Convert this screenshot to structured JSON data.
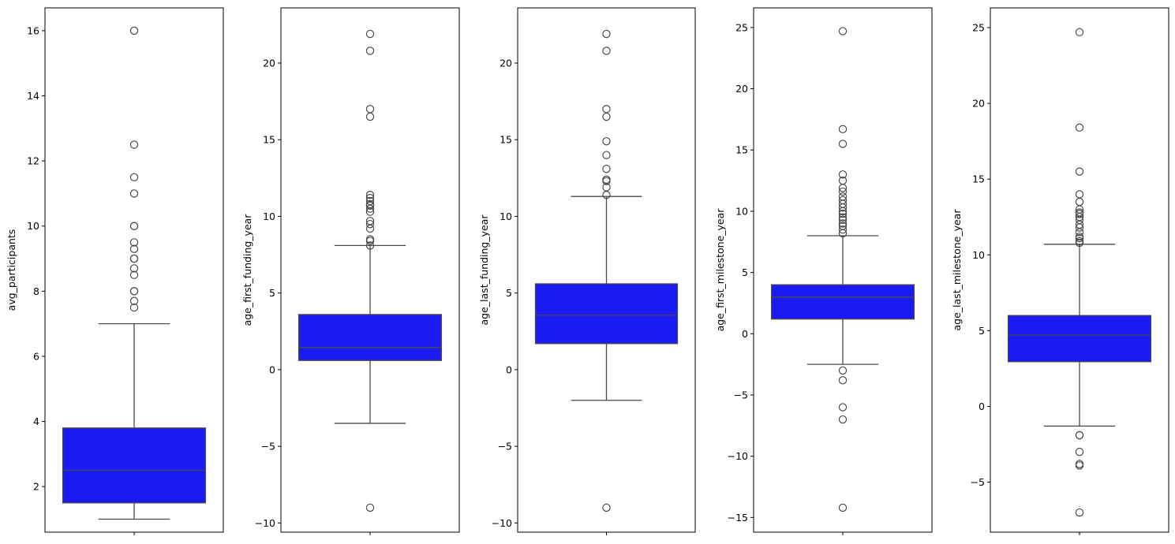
{
  "figure": {
    "colors": {
      "box_fill": "#1a1af2",
      "line": "#4a4a4a",
      "axis": "#000000",
      "background": "#ffffff"
    }
  },
  "chart_data": [
    {
      "type": "box",
      "title": "",
      "xlabel": "",
      "ylabel": "avg_participants",
      "ylim": [
        0.6,
        16.7
      ],
      "yticks": [
        2,
        4,
        6,
        8,
        10,
        12,
        14,
        16
      ],
      "ytick_labels": [
        "2",
        "4",
        "6",
        "8",
        "10",
        "12",
        "14",
        "16"
      ],
      "box": {
        "whisker_low": 1.0,
        "q1": 1.5,
        "median": 2.5,
        "q3": 3.8,
        "whisker_high": 7.0
      },
      "outliers": [
        7.5,
        7.7,
        8.0,
        8.0,
        8.5,
        8.7,
        9.0,
        9.0,
        9.3,
        9.5,
        10.0,
        10.0,
        11.0,
        11.5,
        12.5,
        16.0
      ],
      "grid": false,
      "legend": "none"
    },
    {
      "type": "box",
      "title": "",
      "xlabel": "",
      "ylabel": "age_first_funding_year",
      "ylim": [
        -10.6,
        23.6
      ],
      "yticks": [
        -10,
        -5,
        0,
        5,
        10,
        15,
        20
      ],
      "ytick_labels": [
        "−10",
        "−5",
        "0",
        "5",
        "10",
        "15",
        "20"
      ],
      "box": {
        "whisker_low": -3.5,
        "q1": 0.6,
        "median": 1.45,
        "q3": 3.6,
        "whisker_high": 8.1
      },
      "outliers": [
        -9.0,
        8.1,
        8.4,
        8.5,
        9.2,
        9.5,
        9.7,
        10.3,
        10.5,
        10.7,
        10.8,
        11.0,
        11.2,
        11.4,
        16.5,
        17.0,
        20.8,
        21.9
      ],
      "grid": false,
      "legend": "none"
    },
    {
      "type": "box",
      "title": "",
      "xlabel": "",
      "ylabel": "age_last_funding_year",
      "ylim": [
        -10.6,
        23.6
      ],
      "yticks": [
        -10,
        -5,
        0,
        5,
        10,
        15,
        20
      ],
      "ytick_labels": [
        "−10",
        "−5",
        "0",
        "5",
        "10",
        "15",
        "20"
      ],
      "box": {
        "whisker_low": -2.0,
        "q1": 1.7,
        "median": 3.55,
        "q3": 5.6,
        "whisker_high": 11.3
      },
      "outliers": [
        -9.0,
        11.4,
        11.9,
        12.3,
        12.4,
        13.1,
        14.0,
        14.9,
        16.5,
        17.0,
        20.8,
        21.9
      ],
      "grid": false,
      "legend": "none"
    },
    {
      "type": "box",
      "title": "",
      "xlabel": "",
      "ylabel": "age_first_milestone_year",
      "ylim": [
        -16.2,
        26.6
      ],
      "yticks": [
        -15,
        -10,
        -5,
        0,
        5,
        10,
        15,
        20,
        25
      ],
      "ytick_labels": [
        "−15",
        "−10",
        "−5",
        "0",
        "5",
        "10",
        "15",
        "20",
        "25"
      ],
      "box": {
        "whisker_low": -2.5,
        "q1": 1.2,
        "median": 3.0,
        "q3": 4.0,
        "whisker_high": 8.0
      },
      "outliers": [
        -14.2,
        -7.0,
        -6.0,
        -3.8,
        -3.0,
        8.2,
        8.5,
        8.8,
        9.0,
        9.3,
        9.5,
        9.8,
        10.0,
        10.3,
        10.6,
        10.9,
        11.2,
        11.6,
        11.9,
        12.5,
        13.0,
        15.5,
        16.7,
        24.7
      ],
      "grid": false,
      "legend": "none"
    },
    {
      "type": "box",
      "title": "",
      "xlabel": "",
      "ylabel": "age_last_milestone_year",
      "ylim": [
        -8.3,
        26.3
      ],
      "yticks": [
        -5,
        0,
        5,
        10,
        15,
        20,
        25
      ],
      "ytick_labels": [
        "−5",
        "0",
        "5",
        "10",
        "15",
        "20",
        "25"
      ],
      "box": {
        "whisker_low": -1.3,
        "q1": 2.95,
        "median": 4.7,
        "q3": 6.0,
        "whisker_high": 10.7
      },
      "outliers": [
        -7.0,
        -3.9,
        -3.8,
        -3.0,
        -1.9,
        -1.9,
        10.8,
        10.9,
        11.1,
        11.2,
        11.5,
        11.8,
        12.0,
        12.3,
        12.5,
        12.7,
        12.8,
        13.0,
        13.5,
        14.0,
        15.5,
        18.4,
        24.7
      ],
      "grid": false,
      "legend": "none"
    }
  ]
}
